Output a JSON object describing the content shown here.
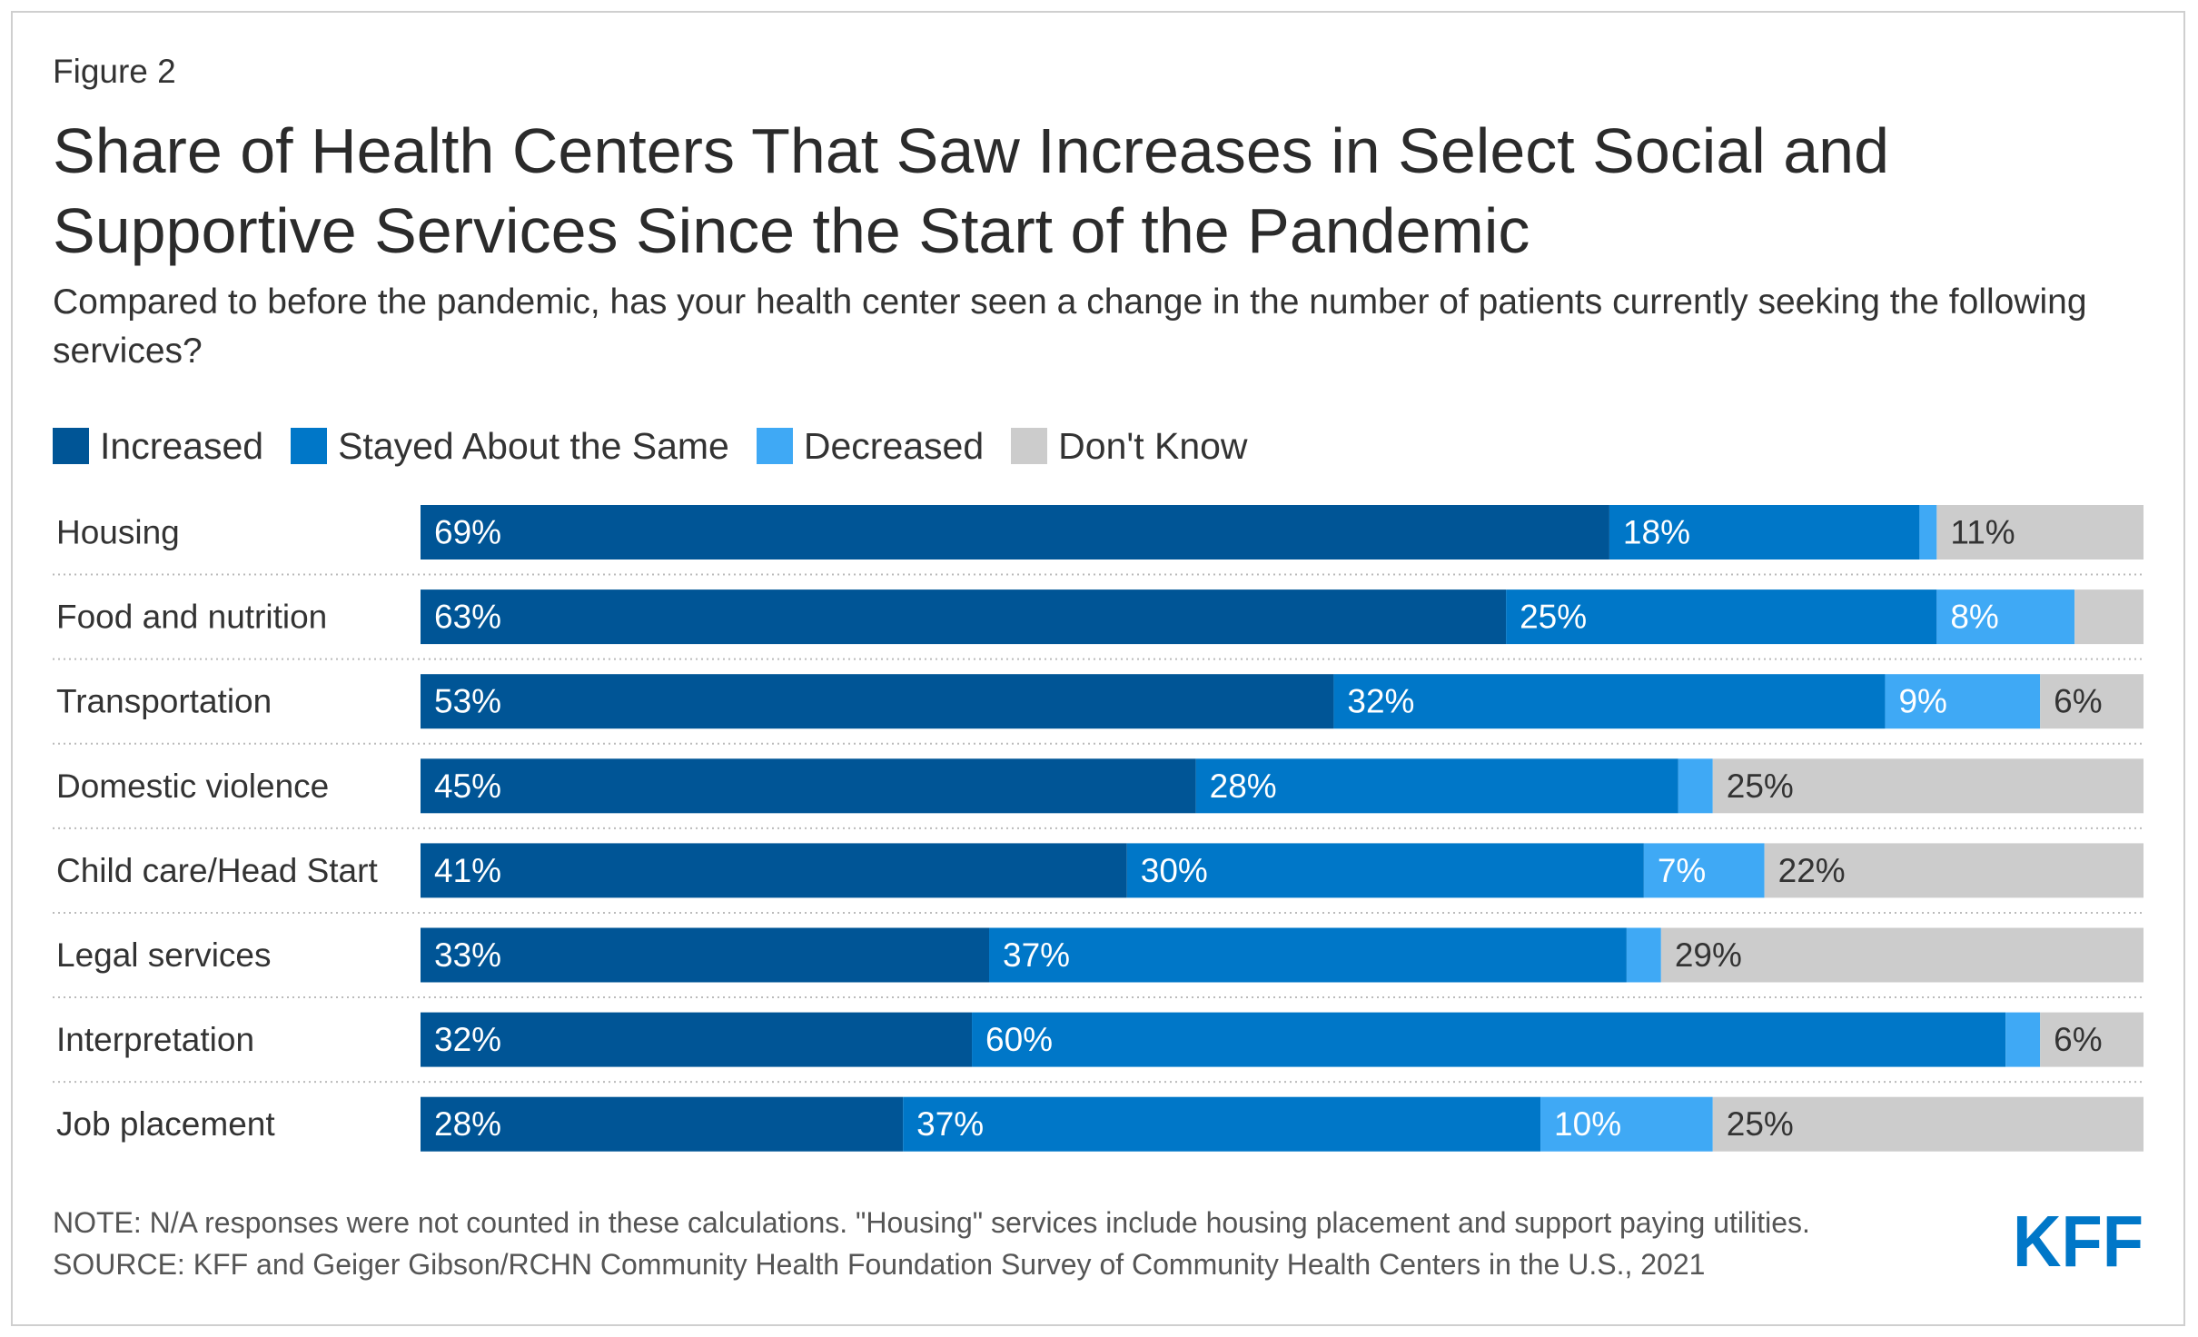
{
  "figure_label": "Figure 2",
  "title": "Share of Health Centers That Saw Increases in Select Social and Supportive Services Since the Start of the Pandemic",
  "subtitle": "Compared to before the pandemic, has your health center seen a change in the number of patients currently seeking the following services?",
  "note": "NOTE: N/A responses were not counted in these calculations. \"Housing\" services include housing placement and support paying utilities.",
  "source": "SOURCE: KFF and Geiger Gibson/RCHN Community Health Foundation Survey of Community Health Centers in the U.S., 2021",
  "logo_text": "KFF",
  "colors": {
    "increased": "#005596",
    "stayed": "#0077c8",
    "decreased": "#3fa9f5",
    "dont_know": "#cccccc",
    "logo": "#0077c8"
  },
  "chart_data": {
    "type": "bar",
    "orientation": "horizontal",
    "stacked": true,
    "xlim": [
      0,
      100
    ],
    "legend_position": "top-left",
    "categories": [
      "Housing",
      "Food and nutrition",
      "Transportation",
      "Domestic violence",
      "Child care/Head Start",
      "Legal services",
      "Interpretation",
      "Job placement"
    ],
    "series": [
      {
        "name": "Increased",
        "color": "#005596",
        "values": [
          69,
          63,
          53,
          45,
          41,
          33,
          32,
          28
        ],
        "labels": [
          "69%",
          "63%",
          "53%",
          "45%",
          "41%",
          "33%",
          "32%",
          "28%"
        ]
      },
      {
        "name": "Stayed About the Same",
        "color": "#0077c8",
        "values": [
          18,
          25,
          32,
          28,
          30,
          37,
          60,
          37
        ],
        "labels": [
          "18%",
          "25%",
          "32%",
          "28%",
          "30%",
          "37%",
          "60%",
          "37%"
        ]
      },
      {
        "name": "Decreased",
        "color": "#3fa9f5",
        "values": [
          1,
          8,
          9,
          2,
          7,
          2,
          2,
          10
        ],
        "labels": [
          "",
          "8%",
          "9%",
          "",
          "7%",
          "",
          "",
          "10%"
        ]
      },
      {
        "name": "Don't Know",
        "color": "#cccccc",
        "values": [
          11,
          4,
          6,
          25,
          22,
          29,
          6,
          25
        ],
        "labels": [
          "11%",
          "",
          "6%",
          "25%",
          "22%",
          "29%",
          "6%",
          "25%"
        ]
      }
    ]
  }
}
